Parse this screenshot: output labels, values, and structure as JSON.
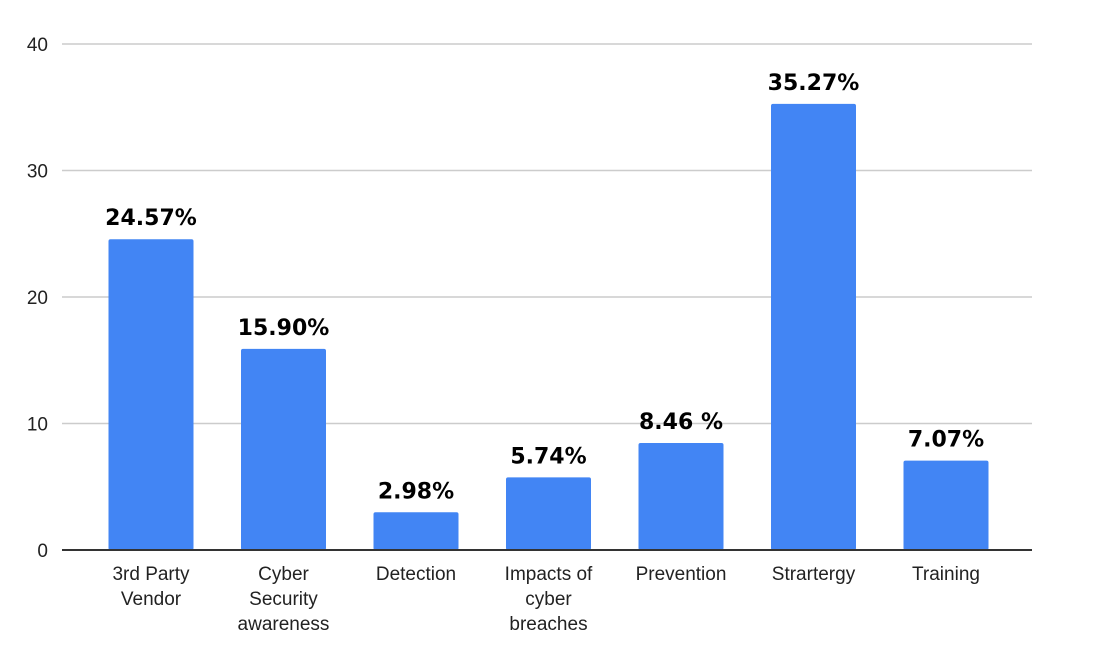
{
  "chart_data": {
    "type": "bar",
    "title": "",
    "xlabel": "",
    "ylabel": "",
    "ylim": [
      0,
      40
    ],
    "yticks": [
      0,
      10,
      20,
      30,
      40
    ],
    "grid": true,
    "legend": "none",
    "bar_color": "#4285f4",
    "categories": [
      [
        "3rd Party",
        "Vendor"
      ],
      [
        "Cyber",
        "Security",
        "awareness"
      ],
      [
        "Detection"
      ],
      [
        "Impacts of",
        "cyber",
        "breaches"
      ],
      [
        "Prevention"
      ],
      [
        "Strartergy"
      ],
      [
        "Training"
      ]
    ],
    "values": [
      24.57,
      15.9,
      2.98,
      5.74,
      8.46,
      35.27,
      7.07
    ],
    "data_labels": [
      "24.57%",
      "15.90%",
      "2.98%",
      "5.74%",
      "8.46 %",
      "35.27%",
      "7.07%"
    ]
  }
}
